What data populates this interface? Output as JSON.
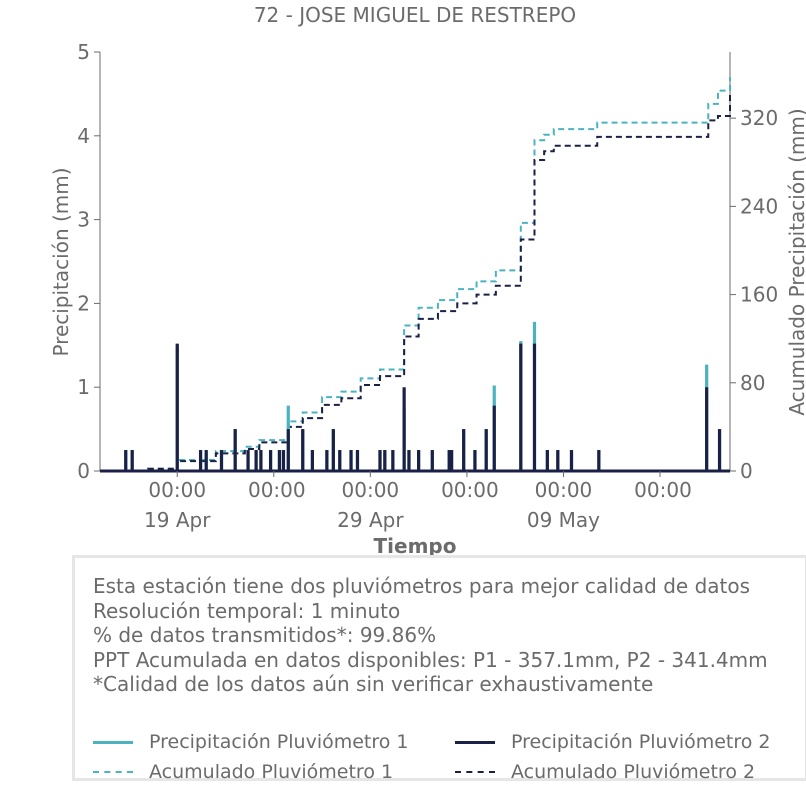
{
  "chart_data": {
    "type": "line",
    "title": "72 - JOSE MIGUEL DE RESTREPO",
    "xlabel": "Tiempo",
    "ylabel": "Precipitación (mm)",
    "y2label": "Acumulado Precipitación (mm)",
    "ylim": [
      0,
      5
    ],
    "y2lim": [
      0,
      380
    ],
    "xlim": [
      "2023-04-15T00:00",
      "2023-05-17T15:00"
    ],
    "x_ticks": [
      {
        "date": "2023-04-19T00:00",
        "time": "00:00",
        "day": "19 Apr"
      },
      {
        "date": "2023-04-24T00:00",
        "time": "00:00",
        "day": ""
      },
      {
        "date": "2023-04-29T00:00",
        "time": "00:00",
        "day": "29 Apr"
      },
      {
        "date": "2023-05-04T00:00",
        "time": "00:00",
        "day": ""
      },
      {
        "date": "2023-05-09T00:00",
        "time": "00:00",
        "day": "09 May"
      },
      {
        "date": "2023-05-14T00:00",
        "time": "00:00",
        "day": ""
      }
    ],
    "y_ticks": [
      0,
      1,
      2,
      3,
      4,
      5
    ],
    "y2_ticks": [
      0,
      80,
      160,
      240,
      320
    ],
    "colors": {
      "p1": "#4bb3bf",
      "p2": "#1b2046",
      "axis": "#6b6b6b"
    },
    "series": [
      {
        "name": "Precipitación Pluviómetro 1",
        "axis": "left",
        "style": "solid",
        "color": "#4bb3bf",
        "spikes": [
          [
            "2023-04-16T08:00",
            0.25
          ],
          [
            "2023-04-16T16:00",
            0.25
          ],
          [
            "2023-04-19T00:00",
            1.5
          ],
          [
            "2023-04-20T05:00",
            0.25
          ],
          [
            "2023-04-20T12:00",
            0.25
          ],
          [
            "2023-04-21T07:00",
            0.25
          ],
          [
            "2023-04-22T00:00",
            0.5
          ],
          [
            "2023-04-22T16:00",
            0.25
          ],
          [
            "2023-04-23T02:00",
            0.25
          ],
          [
            "2023-04-23T08:00",
            0.25
          ],
          [
            "2023-04-23T20:00",
            0.25
          ],
          [
            "2023-04-24T07:00",
            0.25
          ],
          [
            "2023-04-24T12:00",
            0.25
          ],
          [
            "2023-04-24T18:00",
            0.78
          ],
          [
            "2023-04-25T12:00",
            0.5
          ],
          [
            "2023-04-26T00:00",
            0.25
          ],
          [
            "2023-04-26T18:00",
            0.25
          ],
          [
            "2023-04-27T02:00",
            0.5
          ],
          [
            "2023-04-27T10:00",
            0.25
          ],
          [
            "2023-04-28T00:00",
            0.25
          ],
          [
            "2023-04-28T08:00",
            0.25
          ],
          [
            "2023-04-29T12:00",
            0.25
          ],
          [
            "2023-04-29T18:00",
            0.25
          ],
          [
            "2023-04-30T04:00",
            0.25
          ],
          [
            "2023-04-30T18:00",
            0.75
          ],
          [
            "2023-05-01T00:00",
            0.25
          ],
          [
            "2023-05-01T12:00",
            0.25
          ],
          [
            "2023-05-02T05:00",
            0.25
          ],
          [
            "2023-05-03T02:00",
            0.25
          ],
          [
            "2023-05-03T05:00",
            0.25
          ],
          [
            "2023-05-03T20:00",
            0.5
          ],
          [
            "2023-05-04T10:00",
            0.25
          ],
          [
            "2023-05-05T00:00",
            0.5
          ],
          [
            "2023-05-05T10:00",
            1.02
          ],
          [
            "2023-05-06T19:00",
            1.55
          ],
          [
            "2023-05-07T12:00",
            1.78
          ],
          [
            "2023-05-08T04:00",
            0.25
          ],
          [
            "2023-05-08T17:00",
            0.25
          ],
          [
            "2023-05-09T10:00",
            0.25
          ],
          [
            "2023-05-10T20:00",
            0.25
          ],
          [
            "2023-05-16T10:00",
            1.27
          ],
          [
            "2023-05-17T02:00",
            0.5
          ]
        ]
      },
      {
        "name": "Precipitación Pluviómetro 2",
        "axis": "left",
        "style": "solid",
        "color": "#1b2046",
        "spikes": [
          [
            "2023-04-16T08:00",
            0.25
          ],
          [
            "2023-04-16T16:00",
            0.25
          ],
          [
            "2023-04-19T00:00",
            1.52
          ],
          [
            "2023-04-20T05:00",
            0.25
          ],
          [
            "2023-04-20T12:00",
            0.25
          ],
          [
            "2023-04-21T07:00",
            0.25
          ],
          [
            "2023-04-22T00:00",
            0.5
          ],
          [
            "2023-04-22T16:00",
            0.25
          ],
          [
            "2023-04-23T02:00",
            0.25
          ],
          [
            "2023-04-23T08:00",
            0.25
          ],
          [
            "2023-04-23T20:00",
            0.25
          ],
          [
            "2023-04-24T07:00",
            0.25
          ],
          [
            "2023-04-24T12:00",
            0.25
          ],
          [
            "2023-04-24T18:00",
            0.5
          ],
          [
            "2023-04-25T12:00",
            0.5
          ],
          [
            "2023-04-26T00:00",
            0.25
          ],
          [
            "2023-04-26T18:00",
            0.25
          ],
          [
            "2023-04-27T02:00",
            0.5
          ],
          [
            "2023-04-27T10:00",
            0.25
          ],
          [
            "2023-04-28T00:00",
            0.25
          ],
          [
            "2023-04-28T08:00",
            0.25
          ],
          [
            "2023-04-29T12:00",
            0.25
          ],
          [
            "2023-04-29T18:00",
            0.25
          ],
          [
            "2023-04-30T04:00",
            0.25
          ],
          [
            "2023-04-30T18:00",
            1.0
          ],
          [
            "2023-05-01T00:00",
            0.25
          ],
          [
            "2023-05-01T12:00",
            0.25
          ],
          [
            "2023-05-02T05:00",
            0.25
          ],
          [
            "2023-05-03T02:00",
            0.25
          ],
          [
            "2023-05-03T05:00",
            0.25
          ],
          [
            "2023-05-03T20:00",
            0.5
          ],
          [
            "2023-05-04T10:00",
            0.25
          ],
          [
            "2023-05-05T00:00",
            0.5
          ],
          [
            "2023-05-05T10:00",
            0.78
          ],
          [
            "2023-05-06T19:00",
            1.52
          ],
          [
            "2023-05-07T12:00",
            1.52
          ],
          [
            "2023-05-08T04:00",
            0.25
          ],
          [
            "2023-05-08T17:00",
            0.25
          ],
          [
            "2023-05-09T10:00",
            0.25
          ],
          [
            "2023-05-10T20:00",
            0.25
          ],
          [
            "2023-05-16T10:00",
            1.0
          ],
          [
            "2023-05-17T02:00",
            0.5
          ]
        ]
      },
      {
        "name": "Acumulado Pluviómetro 1",
        "axis": "right",
        "style": "dashed",
        "color": "#4bb3bf",
        "points": [
          [
            "2023-04-15T00:00",
            0
          ],
          [
            "2023-04-17T12:00",
            2
          ],
          [
            "2023-04-19T00:00",
            10
          ],
          [
            "2023-04-21T00:00",
            18
          ],
          [
            "2023-04-22T12:00",
            22
          ],
          [
            "2023-04-23T06:00",
            28
          ],
          [
            "2023-04-24T18:00",
            45
          ],
          [
            "2023-04-25T12:00",
            53
          ],
          [
            "2023-04-26T12:00",
            67
          ],
          [
            "2023-04-27T12:00",
            72
          ],
          [
            "2023-04-28T12:00",
            84
          ],
          [
            "2023-04-29T12:00",
            92
          ],
          [
            "2023-04-30T18:00",
            132
          ],
          [
            "2023-05-01T12:00",
            148
          ],
          [
            "2023-05-02T12:00",
            155
          ],
          [
            "2023-05-03T12:00",
            165
          ],
          [
            "2023-05-04T12:00",
            172
          ],
          [
            "2023-05-05T12:00",
            182
          ],
          [
            "2023-05-06T19:00",
            225
          ],
          [
            "2023-05-07T12:00",
            300
          ],
          [
            "2023-05-08T00:00",
            305
          ],
          [
            "2023-05-08T12:00",
            310
          ],
          [
            "2023-05-10T18:00",
            316
          ],
          [
            "2023-05-15T18:00",
            316
          ],
          [
            "2023-05-16T12:00",
            333
          ],
          [
            "2023-05-17T00:00",
            345
          ],
          [
            "2023-05-17T15:00",
            357.1
          ]
        ]
      },
      {
        "name": "Acumulado Pluviómetro 2",
        "axis": "right",
        "style": "dashed",
        "color": "#1b2046",
        "points": [
          [
            "2023-04-15T00:00",
            0
          ],
          [
            "2023-04-17T12:00",
            2
          ],
          [
            "2023-04-19T00:00",
            9
          ],
          [
            "2023-04-21T00:00",
            16
          ],
          [
            "2023-04-22T12:00",
            20
          ],
          [
            "2023-04-23T06:00",
            26
          ],
          [
            "2023-04-24T18:00",
            40
          ],
          [
            "2023-04-25T12:00",
            48
          ],
          [
            "2023-04-26T12:00",
            60
          ],
          [
            "2023-04-27T12:00",
            66
          ],
          [
            "2023-04-28T12:00",
            78
          ],
          [
            "2023-04-29T12:00",
            86
          ],
          [
            "2023-04-30T18:00",
            122
          ],
          [
            "2023-05-01T12:00",
            138
          ],
          [
            "2023-05-02T12:00",
            145
          ],
          [
            "2023-05-03T12:00",
            152
          ],
          [
            "2023-05-04T12:00",
            160
          ],
          [
            "2023-05-05T12:00",
            168
          ],
          [
            "2023-05-06T19:00",
            210
          ],
          [
            "2023-05-07T12:00",
            282
          ],
          [
            "2023-05-08T00:00",
            290
          ],
          [
            "2023-05-08T12:00",
            295
          ],
          [
            "2023-05-10T18:00",
            303
          ],
          [
            "2023-05-15T18:00",
            303
          ],
          [
            "2023-05-16T12:00",
            318
          ],
          [
            "2023-05-17T00:00",
            322
          ],
          [
            "2023-05-17T15:00",
            341.4
          ]
        ]
      }
    ]
  },
  "info": {
    "line1": "Esta estación tiene dos pluviómetros para mejor calidad de datos",
    "line2": "Resolución temporal: 1 minuto",
    "line3": "% de datos transmitidos*: 99.86%",
    "line4": "PPT Acumulada en datos disponibles: P1 - 357.1mm, P2 - 341.4mm",
    "line5": "*Calidad de los datos aún sin verificar exhaustivamente"
  },
  "legend": {
    "placement": "bottom-box",
    "items": [
      {
        "label": "Precipitación Pluviómetro 1"
      },
      {
        "label": "Precipitación Pluviómetro 2"
      },
      {
        "label": "Acumulado Pluviómetro 1"
      },
      {
        "label": "Acumulado Pluviómetro 2"
      }
    ]
  }
}
